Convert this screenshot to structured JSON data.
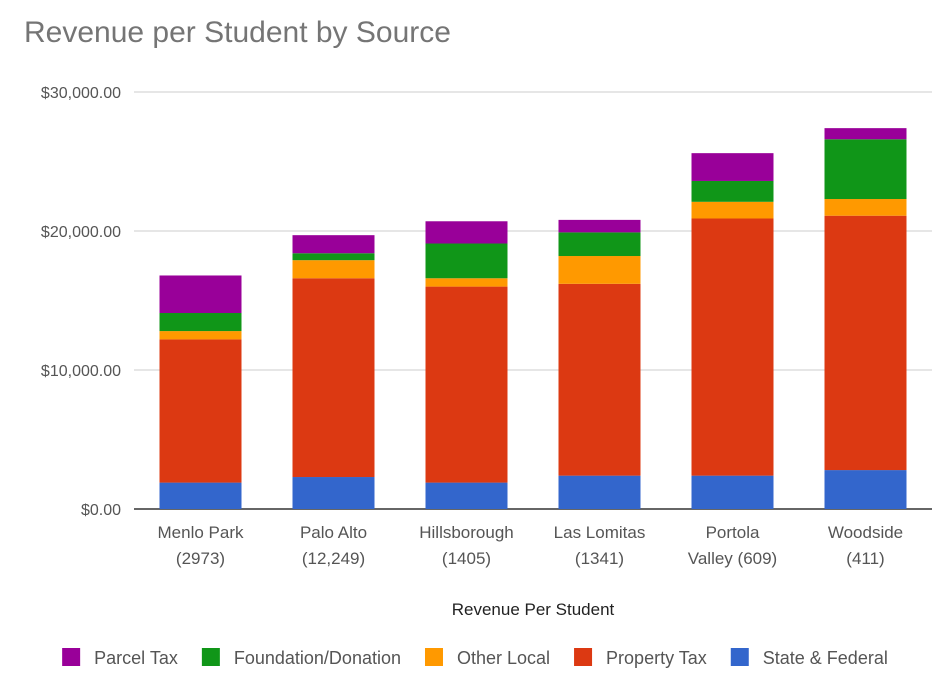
{
  "chart_data": {
    "type": "bar",
    "stacked": true,
    "title": "Revenue per Student by Source",
    "xlabel": "Revenue Per Student",
    "ylabel": "",
    "ylim": [
      0,
      30000
    ],
    "yticks": [
      0,
      10000,
      20000,
      30000
    ],
    "ytick_labels": [
      "$0.00",
      "$10,000.00",
      "$20,000.00",
      "$30,000.00"
    ],
    "grid": true,
    "legend_position": "bottom",
    "categories": [
      [
        "Menlo Park",
        "(2973)"
      ],
      [
        "Palo Alto",
        "(12,249)"
      ],
      [
        "Hillsborough",
        "(1405)"
      ],
      [
        "Las Lomitas",
        "(1341)"
      ],
      [
        "Portola",
        "Valley (609)"
      ],
      [
        "Woodside",
        "(411)"
      ]
    ],
    "series": [
      {
        "name": "State & Federal",
        "color": "#3366cc",
        "values": [
          1900,
          2300,
          1900,
          2400,
          2400,
          2800
        ]
      },
      {
        "name": "Property Tax",
        "color": "#dc3912",
        "values": [
          10300,
          14300,
          14100,
          13800,
          18500,
          18300
        ]
      },
      {
        "name": "Other Local",
        "color": "#ff9900",
        "values": [
          600,
          1300,
          600,
          2000,
          1200,
          1200
        ]
      },
      {
        "name": "Foundation/Donation",
        "color": "#109618",
        "values": [
          1300,
          500,
          2500,
          1700,
          1500,
          4300
        ]
      },
      {
        "name": "Parcel Tax",
        "color": "#990099",
        "values": [
          2700,
          1300,
          1600,
          900,
          2000,
          800
        ]
      }
    ],
    "legend_order": [
      "Parcel Tax",
      "Foundation/Donation",
      "Other Local",
      "Property Tax",
      "State & Federal"
    ]
  }
}
